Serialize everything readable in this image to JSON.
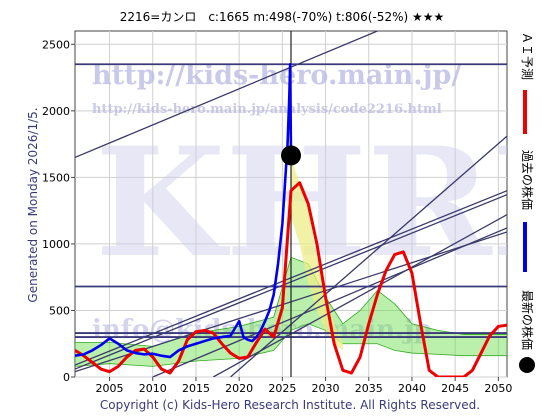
{
  "header": {
    "title": "2216=カンロ　c:1665  m:498(-70%)  t:806(-52%)  ★★★"
  },
  "side_labels": {
    "generated": "Generated on Monday 2026/1/5.",
    "ai_forecast": "ＡＩ予測",
    "past_price": "過去の株価",
    "latest_price": "最新の株価"
  },
  "watermarks": {
    "site": "http://kids-hero.main.jp/",
    "analysis_url": "http://kids-hero.main.jp/analysis/code2216.html",
    "brand": "KHRI",
    "email": "info@kids-hero.main.jp"
  },
  "footer": {
    "copyright": "Copyright (c) Kids-Hero Research Institute. All Rights Reserved."
  },
  "colors": {
    "past": "#0000ee",
    "forecast": "#ee0000",
    "trend_lines": "#3a3a6a",
    "band_green": "#66dd44",
    "band_yellow": "#eeee88",
    "latest_marker": "#000000"
  },
  "chart_data": {
    "type": "line",
    "title": "2216=カンロ　c:1665  m:498(-70%)  t:806(-52%)  ★★★",
    "xlim": [
      2001,
      2051
    ],
    "ylim": [
      0,
      2600
    ],
    "x_ticks": [
      2005,
      2010,
      2015,
      2020,
      2025,
      2030,
      2035,
      2040,
      2045,
      2050
    ],
    "y_ticks": [
      0,
      500,
      1000,
      1500,
      2000,
      2500
    ],
    "horizontal_levels": [
      2350,
      680,
      330,
      300
    ],
    "vertical_marker_x": 2026,
    "latest_point": {
      "x": 2026.0,
      "y": 1665
    },
    "trend_lines": [
      {
        "x": [
          2001,
          2036
        ],
        "y": [
          1650,
          2600
        ]
      },
      {
        "x": [
          2001,
          2051
        ],
        "y": [
          90,
          1400
        ]
      },
      {
        "x": [
          2001,
          2051
        ],
        "y": [
          60,
          1370
        ]
      },
      {
        "x": [
          2001,
          2051
        ],
        "y": [
          40,
          1090
        ]
      },
      {
        "x": [
          2019,
          2051
        ],
        "y": [
          0,
          1810
        ]
      },
      {
        "x": [
          2017,
          2051
        ],
        "y": [
          0,
          1220
        ]
      },
      {
        "x": [
          2010,
          2051
        ],
        "y": [
          0,
          1120
        ]
      }
    ],
    "series": [
      {
        "name": "過去の株価",
        "x": [
          2001,
          2002,
          2003,
          2004,
          2005,
          2006,
          2007,
          2008,
          2009,
          2010,
          2011,
          2012,
          2013,
          2014,
          2015,
          2016,
          2017,
          2018,
          2019,
          2020,
          2020.5,
          2021,
          2021.5,
          2022,
          2022.5,
          2023,
          2023.5,
          2024,
          2024.5,
          2025,
          2025.3,
          2025.6,
          2025.8,
          2025.9,
          2026
        ],
        "y": [
          160,
          170,
          200,
          240,
          290,
          250,
          200,
          180,
          170,
          175,
          160,
          150,
          200,
          230,
          250,
          270,
          290,
          300,
          310,
          420,
          300,
          280,
          270,
          300,
          350,
          420,
          500,
          620,
          850,
          1150,
          1450,
          1750,
          2100,
          2350,
          1665
        ]
      },
      {
        "name": "ＡＩ予測",
        "x": [
          2001,
          2002,
          2003,
          2004,
          2005,
          2006,
          2007,
          2008,
          2009,
          2010,
          2011,
          2012,
          2013,
          2014,
          2015,
          2016,
          2017,
          2018,
          2019,
          2020,
          2021,
          2022,
          2023,
          2024,
          2025,
          2026,
          2027,
          2028,
          2029,
          2030,
          2031,
          2032,
          2033,
          2034,
          2035,
          2036,
          2037,
          2038,
          2039,
          2040,
          2041,
          2042,
          2043,
          2044,
          2045,
          2046,
          2047,
          2048,
          2049,
          2050,
          2051
        ],
        "y": [
          200,
          160,
          110,
          60,
          40,
          80,
          150,
          200,
          210,
          150,
          60,
          30,
          120,
          280,
          340,
          350,
          330,
          250,
          180,
          140,
          150,
          260,
          360,
          300,
          520,
          1400,
          1460,
          1300,
          1000,
          600,
          250,
          50,
          30,
          150,
          400,
          620,
          800,
          920,
          940,
          780,
          400,
          50,
          0,
          0,
          0,
          0,
          50,
          180,
          310,
          380,
          390
        ]
      }
    ],
    "bands": {
      "yellow": {
        "x": [
          2026,
          2027,
          2028,
          2029,
          2030,
          2031,
          2032
        ],
        "lower": [
          1200,
          1000,
          700,
          500,
          350,
          250,
          200
        ],
        "upper": [
          1650,
          1450,
          1250,
          900,
          600,
          400,
          260
        ]
      },
      "green": {
        "x": [
          2001,
          2005,
          2010,
          2015,
          2020,
          2024,
          2026,
          2028,
          2030,
          2032,
          2034,
          2036,
          2038,
          2040,
          2043,
          2046,
          2051
        ],
        "lower": [
          80,
          100,
          80,
          120,
          140,
          200,
          350,
          400,
          350,
          250,
          250,
          250,
          200,
          180,
          170,
          160,
          160
        ],
        "upper": [
          260,
          260,
          230,
          330,
          380,
          450,
          900,
          850,
          600,
          400,
          500,
          650,
          550,
          400,
          350,
          320,
          320
        ]
      }
    }
  }
}
